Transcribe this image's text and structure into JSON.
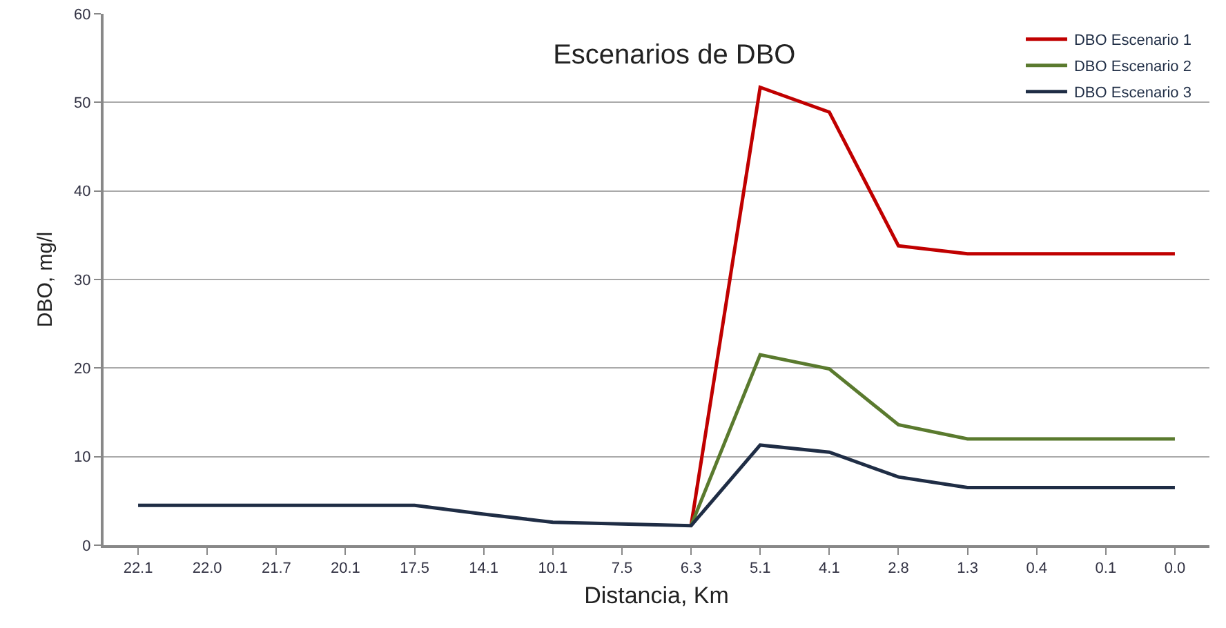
{
  "chart_data": {
    "type": "line",
    "title": "Escenarios de DBO",
    "xlabel": "Distancia, Km",
    "ylabel": "DBO, mg/l",
    "categories": [
      "22.1",
      "22.0",
      "21.7",
      "20.1",
      "17.5",
      "14.1",
      "10.1",
      "7.5",
      "6.3",
      "5.1",
      "4.1",
      "2.8",
      "1.3",
      "0.4",
      "0.1",
      "0.0"
    ],
    "series": [
      {
        "name": "DBO Escenario 1",
        "color": "#c00000",
        "values": [
          null,
          null,
          null,
          null,
          null,
          null,
          null,
          null,
          2.2,
          51.7,
          48.9,
          33.8,
          32.9,
          32.9,
          32.9,
          32.9
        ]
      },
      {
        "name": "DBO Escenario 2",
        "color": "#5a7a2e",
        "values": [
          null,
          null,
          null,
          null,
          null,
          null,
          null,
          null,
          2.2,
          21.5,
          19.9,
          13.6,
          12.0,
          12.0,
          12.0,
          12.0
        ]
      },
      {
        "name": "DBO Escenario 3",
        "color": "#1f2d45",
        "values": [
          4.5,
          4.5,
          4.5,
          4.5,
          4.5,
          3.5,
          2.6,
          2.4,
          2.2,
          11.3,
          10.5,
          7.7,
          6.5,
          6.5,
          6.5,
          6.5
        ]
      }
    ],
    "ylim": [
      0,
      60
    ],
    "yticks": [
      0,
      10,
      20,
      30,
      40,
      50,
      60
    ],
    "grid": "y",
    "legend": "top right",
    "marker": "none",
    "line_style": "solid"
  }
}
